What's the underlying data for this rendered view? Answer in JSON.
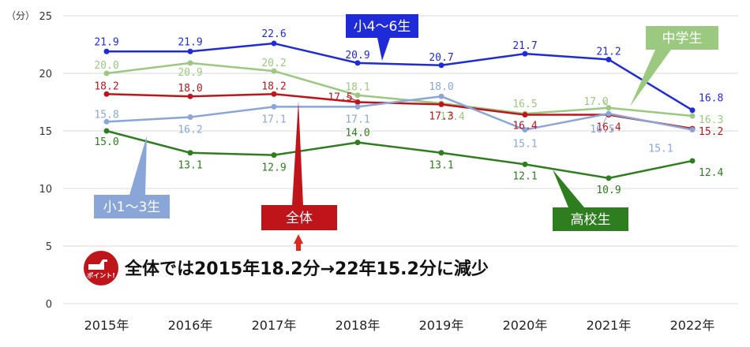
{
  "chart_data": {
    "type": "line",
    "unit_label": "（分）",
    "categories": [
      "2015年",
      "2016年",
      "2017年",
      "2018年",
      "2019年",
      "2020年",
      "2021年",
      "2022年"
    ],
    "ylim": [
      0,
      25
    ],
    "yticks": [
      0,
      5,
      10,
      15,
      20,
      25
    ],
    "grid": true,
    "series": [
      {
        "id": "s46",
        "name": "小4～6生",
        "color": "#1f2bd8",
        "values": [
          21.9,
          21.9,
          22.6,
          20.9,
          20.7,
          21.7,
          21.2,
          16.8
        ],
        "labels": [
          "21.9",
          "21.9",
          "22.6",
          "20.9",
          "20.7",
          "21.7",
          "21.2",
          "16.8"
        ]
      },
      {
        "id": "sch",
        "name": "中学生",
        "color": "#9ac97f",
        "values": [
          20.0,
          20.9,
          20.2,
          18.1,
          17.4,
          16.5,
          17.0,
          16.3
        ],
        "labels": [
          "20.0",
          "20.9",
          "20.2",
          "18.1",
          "17.4",
          "16.5",
          "17.0",
          "16.3"
        ]
      },
      {
        "id": "all",
        "name": "全体",
        "color": "#c0141b",
        "values": [
          18.2,
          18.0,
          18.2,
          17.5,
          17.3,
          16.4,
          16.4,
          15.2
        ],
        "labels": [
          "18.2",
          "18.0",
          "18.2",
          "17.5",
          "17.3",
          "16.4",
          "16.4",
          "15.2"
        ]
      },
      {
        "id": "s13",
        "name": "小1～3生",
        "color": "#8aa6d8",
        "values": [
          15.8,
          16.2,
          17.1,
          17.1,
          18.0,
          15.1,
          16.5,
          15.1
        ],
        "labels": [
          "15.8",
          "16.2",
          "17.1",
          "17.1",
          "18.0",
          "15.1",
          "16.5",
          "15.1"
        ]
      },
      {
        "id": "hs",
        "name": "高校生",
        "color": "#2e7d1e",
        "values": [
          15.0,
          13.1,
          12.9,
          14.0,
          13.1,
          12.1,
          10.9,
          12.4
        ],
        "labels": [
          "15.0",
          "13.1",
          "12.9",
          "14.0",
          "13.1",
          "12.1",
          "10.9",
          "12.4"
        ]
      }
    ],
    "annotation": {
      "badge": "ポイント!",
      "text": "全体では2015年18.2分→22年15.2分に減少"
    }
  }
}
